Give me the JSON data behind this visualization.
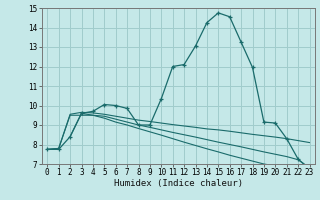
{
  "title": "",
  "xlabel": "Humidex (Indice chaleur)",
  "ylabel": "",
  "xlim": [
    -0.5,
    23.5
  ],
  "ylim": [
    7,
    15
  ],
  "yticks": [
    7,
    8,
    9,
    10,
    11,
    12,
    13,
    14,
    15
  ],
  "xticks": [
    0,
    1,
    2,
    3,
    4,
    5,
    6,
    7,
    8,
    9,
    10,
    11,
    12,
    13,
    14,
    15,
    16,
    17,
    18,
    19,
    20,
    21,
    22,
    23
  ],
  "bg_color": "#c5e8e8",
  "grid_color": "#a0cccc",
  "line_color": "#1a6b6b",
  "line1_x": [
    0,
    1,
    2,
    3,
    4,
    5,
    6,
    7,
    8,
    9,
    10,
    11,
    12,
    13,
    14,
    15,
    16,
    17,
    18,
    19,
    20,
    21,
    22,
    23
  ],
  "line1_y": [
    7.75,
    7.75,
    8.4,
    9.6,
    9.7,
    10.05,
    10.0,
    9.85,
    9.0,
    9.0,
    10.35,
    12.0,
    12.1,
    13.05,
    14.25,
    14.75,
    14.55,
    13.25,
    11.95,
    9.15,
    9.1,
    8.3,
    7.25,
    6.75
  ],
  "line2_x": [
    0,
    1,
    2,
    3,
    4,
    5,
    6,
    7,
    8,
    9,
    10,
    11,
    12,
    13,
    14,
    15,
    16,
    17,
    18,
    19,
    20,
    21,
    22,
    23
  ],
  "line2_y": [
    7.75,
    7.8,
    9.55,
    9.65,
    9.62,
    9.55,
    9.45,
    9.35,
    9.25,
    9.18,
    9.1,
    9.02,
    8.95,
    8.88,
    8.8,
    8.75,
    8.68,
    8.6,
    8.52,
    8.45,
    8.38,
    8.3,
    8.2,
    8.1
  ],
  "line3_x": [
    0,
    1,
    2,
    3,
    4,
    5,
    6,
    7,
    8,
    9,
    10,
    11,
    12,
    13,
    14,
    15,
    16,
    17,
    18,
    19,
    20,
    21,
    22,
    23
  ],
  "line3_y": [
    7.75,
    7.8,
    9.5,
    9.5,
    9.5,
    9.45,
    9.3,
    9.15,
    9.0,
    8.88,
    8.75,
    8.62,
    8.5,
    8.38,
    8.25,
    8.12,
    8.0,
    7.88,
    7.75,
    7.62,
    7.5,
    7.38,
    7.22,
    6.8
  ],
  "line4_x": [
    2,
    3,
    4,
    5,
    6,
    7,
    8,
    9,
    10,
    11,
    12,
    13,
    14,
    15,
    16,
    17,
    18,
    19,
    20,
    21,
    22,
    23
  ],
  "line4_y": [
    8.4,
    9.6,
    9.5,
    9.35,
    9.15,
    9.0,
    8.82,
    8.65,
    8.48,
    8.3,
    8.12,
    7.95,
    7.78,
    7.62,
    7.45,
    7.3,
    7.15,
    7.0,
    6.9,
    6.82,
    6.72,
    6.75
  ]
}
